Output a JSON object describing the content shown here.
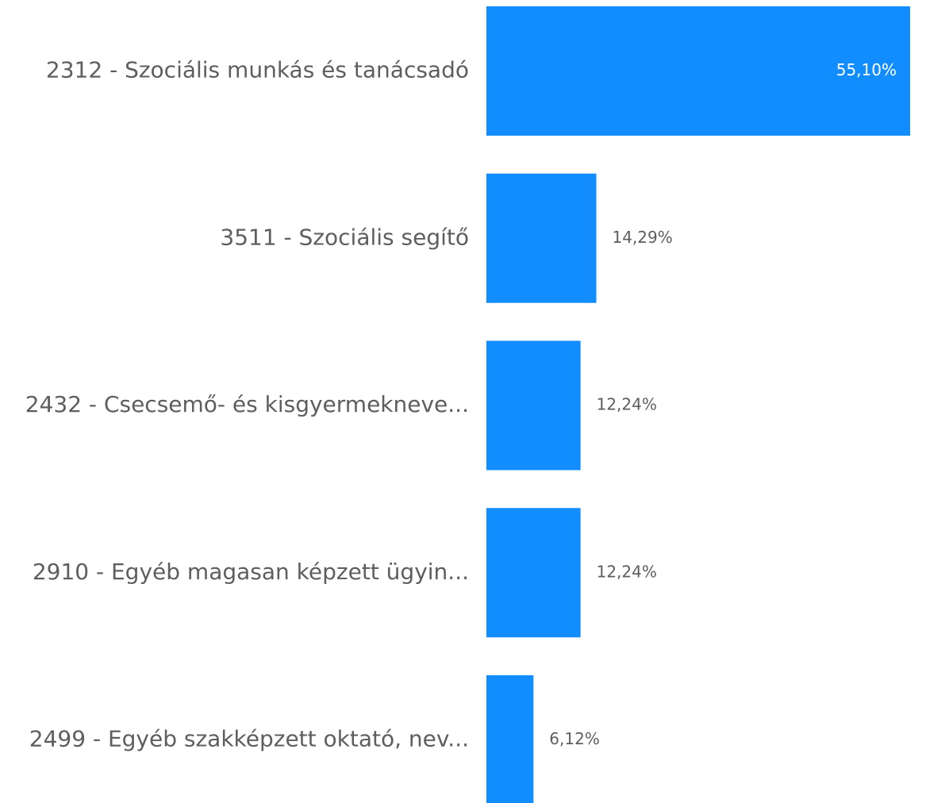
{
  "chart_data": {
    "type": "hbar",
    "categories": [
      "2312 - Szociális munkás és tanácsadó",
      "3511 - Szociális segítő",
      "2432 - Csecsemő- és kisgyermekneve...",
      "2910 - Egyéb magasan képzett ügyin...",
      "2499 - Egyéb szakképzett oktató, nev..."
    ],
    "values": [
      55.1,
      14.29,
      12.24,
      12.24,
      6.12
    ],
    "value_labels": [
      "55,10%",
      "14,29%",
      "12,24%",
      "12,24%",
      "6,12%"
    ],
    "color": "#118dff"
  }
}
